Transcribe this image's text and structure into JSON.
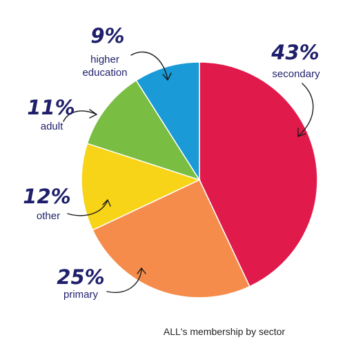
{
  "chart_data": {
    "type": "pie",
    "title": "",
    "caption": "ALL's membership by sector",
    "slices": [
      {
        "label": "secondary",
        "value": 43,
        "display": "43%",
        "color": "#e01b4c"
      },
      {
        "label": "primary",
        "value": 25,
        "display": "25%",
        "color": "#f58c4b"
      },
      {
        "label": "other",
        "value": 12,
        "display": "12%",
        "color": "#f7d417"
      },
      {
        "label": "adult",
        "value": 11,
        "display": "11%",
        "color": "#79bd42"
      },
      {
        "label": "higher education",
        "value": 9,
        "display": "9%",
        "color": "#1a9ad7"
      }
    ],
    "legend": "none"
  }
}
